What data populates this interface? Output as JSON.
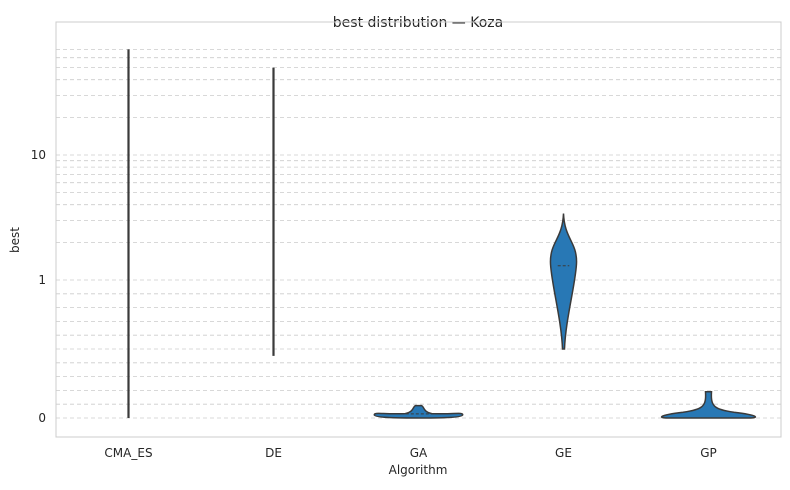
{
  "chart_data": {
    "type": "violin",
    "title": "best distribution — Koza",
    "xlabel": "Algorithm",
    "ylabel": "best",
    "y_scale": "symlog",
    "y_linthresh": 1,
    "ylim": [
      0,
      75
    ],
    "y_ticks": [
      0,
      1,
      10
    ],
    "y_tick_labels": [
      "0",
      "1",
      "10"
    ],
    "grid": "y-dashed",
    "categories": [
      "CMA_ES",
      "DE",
      "GA",
      "GE",
      "GP"
    ],
    "violins": [
      {
        "category": "CMA_ES",
        "min": 0,
        "max": 70,
        "widest_at": 0,
        "median": 0
      },
      {
        "category": "DE",
        "min": 0.45,
        "max": 50,
        "widest_at": 0.45,
        "median": 0.45
      },
      {
        "category": "GA",
        "min": 0.0,
        "max": 0.09,
        "widest_at": 0.03,
        "median": 0.03
      },
      {
        "category": "GE",
        "min": 0.5,
        "max": 3.4,
        "widest_at": 1.4,
        "median": 1.3
      },
      {
        "category": "GP",
        "min": 0.0,
        "max": 0.19,
        "widest_at": 0.02,
        "median": 0.0
      }
    ],
    "colors": {
      "violin_fill": "#2878b5",
      "violin_edge": "#3a3a3a",
      "grid": "#cccccc"
    }
  }
}
